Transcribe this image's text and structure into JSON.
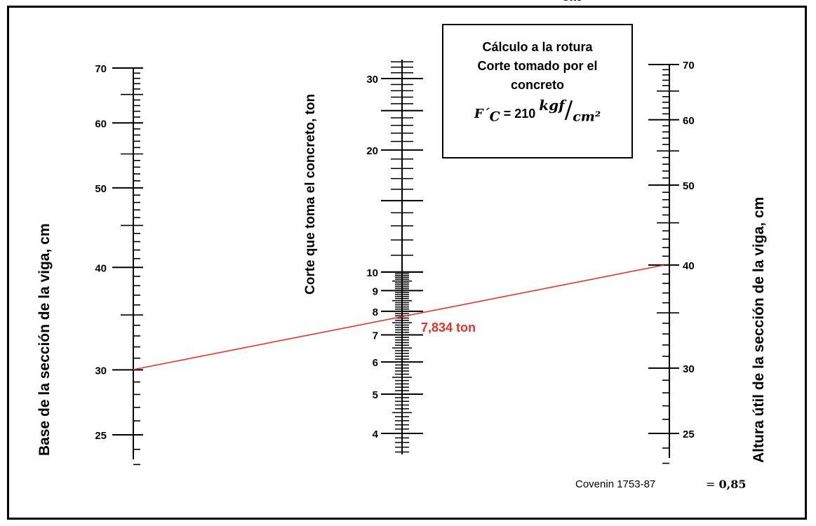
{
  "cutoff_top": "cm",
  "title_box": {
    "line1": "Cálculo a la rotura",
    "line2": "Corte tomado por el",
    "line3": "concreto",
    "f_symbol": "F´",
    "f_sub": "C",
    "equals_value": " = 210 ",
    "unit_num": "kgf",
    "unit_den": "cm²"
  },
  "axes": {
    "left": {
      "label": "Base de la sección de la viga, cm",
      "ticks": [
        "70",
        "60",
        "50",
        "40",
        "30",
        "25"
      ]
    },
    "middle": {
      "label": "Corte que toma el concreto, ton",
      "ticks": [
        "30",
        "20",
        "10",
        "9",
        "8",
        "7",
        "6",
        "5",
        "4"
      ]
    },
    "right": {
      "label": "Altura útil de la sección de la viga, cm",
      "ticks": [
        "70",
        "60",
        "50",
        "40",
        "30",
        "25"
      ]
    }
  },
  "result": {
    "label": "7,834 ton",
    "base_cm": 30,
    "altura_cm": 40,
    "corte_ton": 7.834,
    "color": "#e8322c"
  },
  "footer": {
    "norm": "Covenin 1753-87",
    "phi_prefix": "= ",
    "phi_value": "0,85"
  }
}
